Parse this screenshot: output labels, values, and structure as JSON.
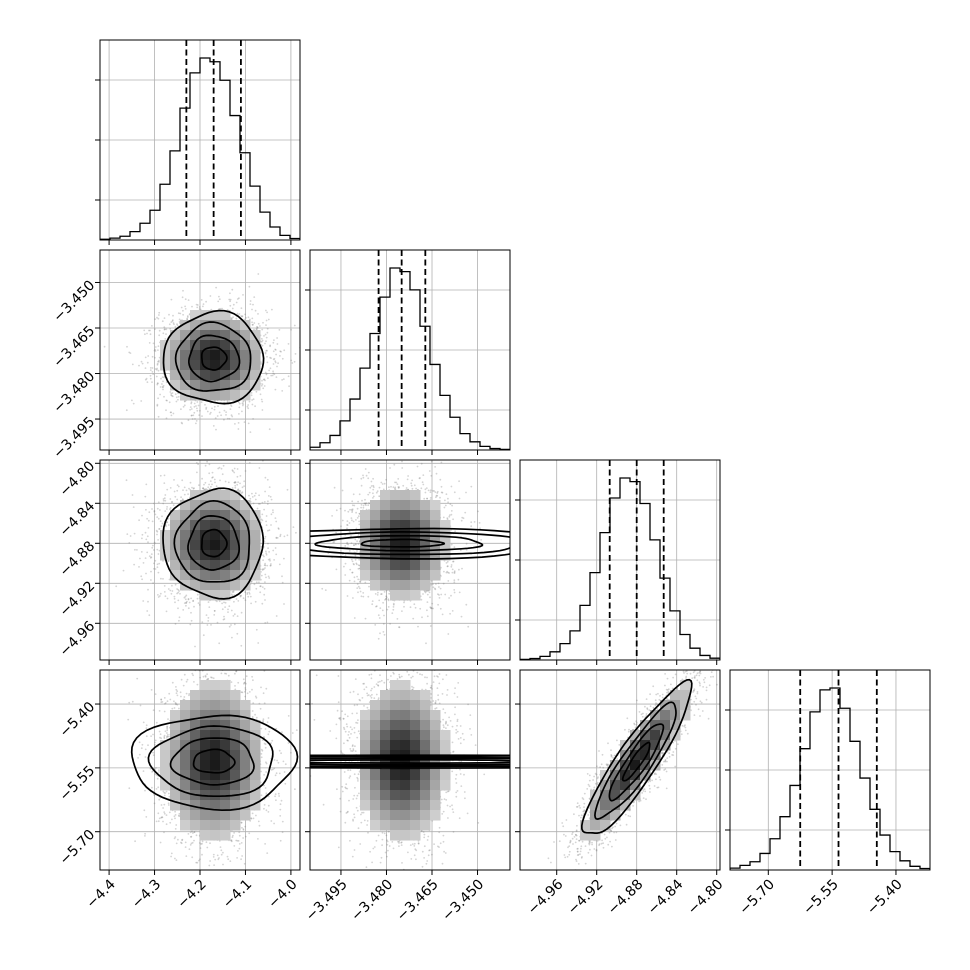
{
  "chart_data": {
    "type": "corner",
    "parameters": [
      {
        "mean": -4.17,
        "std": 0.055,
        "range": [
          -4.42,
          -3.98
        ],
        "quantiles": [
          -4.23,
          -4.17,
          -4.11
        ],
        "ticks": [
          -4.4,
          -4.3,
          -4.2,
          -4.1,
          -4.0
        ],
        "tick_labels": [
          "−4.4",
          "−4.3",
          "−4.2",
          "−4.1",
          "−4.0"
        ]
      },
      {
        "mean": -3.475,
        "std": 0.0075,
        "range": [
          -3.5052,
          -3.4393
        ],
        "quantiles": [
          -3.4826,
          -3.475,
          -3.4672
        ],
        "ticks": [
          -3.495,
          -3.48,
          -3.465,
          -3.45
        ],
        "tick_labels": [
          "−3.495",
          "−3.480",
          "−3.465",
          "−3.450"
        ]
      },
      {
        "mean": -4.88,
        "std": 0.027,
        "range": [
          -4.9967,
          -4.7967
        ],
        "quantiles": [
          -4.907,
          -4.88,
          -4.853
        ],
        "ticks": [
          -4.96,
          -4.92,
          -4.88,
          -4.84,
          -4.8
        ],
        "tick_labels": [
          "−4.96",
          "−4.92",
          "−4.88",
          "−4.84",
          "−4.80"
        ]
      },
      {
        "mean": -5.535,
        "std": 0.09,
        "range": [
          -5.79,
          -5.32
        ],
        "quantiles": [
          -5.625,
          -5.535,
          -5.445
        ],
        "ticks": [
          -5.7,
          -5.55,
          -5.4
        ],
        "tick_labels": [
          "−5.70",
          "−5.55",
          "−5.40"
        ]
      }
    ],
    "correlations": [
      [
        1,
        0,
        0,
        0
      ],
      [
        0,
        1,
        0,
        0
      ],
      [
        0,
        0,
        1,
        0.9
      ],
      [
        0,
        0,
        0.9,
        1
      ]
    ],
    "histograms": {
      "bins": 20,
      "counts": [
        [
          0.4,
          1.0,
          2.0,
          4.5,
          9.0,
          16.0,
          30.0,
          48.0,
          71.0,
          90.0,
          98.0,
          96.0,
          86.0,
          67.0,
          47.0,
          29.0,
          15.0,
          7.0,
          2.5,
          0.8
        ],
        [
          1.5,
          4.0,
          8.0,
          16.0,
          28.0,
          45.0,
          64.0,
          84.0,
          100.0,
          98.0,
          88.0,
          68.0,
          47.0,
          30.0,
          18.0,
          9.0,
          4.5,
          2.0,
          0.8,
          0.3
        ],
        [
          0.3,
          0.8,
          2.0,
          4.5,
          9.0,
          16.0,
          30.0,
          48.0,
          70.0,
          89.0,
          100.0,
          98.0,
          86.0,
          66.0,
          45.0,
          27.0,
          14.0,
          6.5,
          2.5,
          1.0
        ],
        [
          1.0,
          2.5,
          4.5,
          9.0,
          17.0,
          29.0,
          46.0,
          66.0,
          86.0,
          98.0,
          99.0,
          88.0,
          70.0,
          50.0,
          33.0,
          19.0,
          10.0,
          5.0,
          2.0,
          0.8
        ]
      ]
    },
    "contour_levels_sigma": [
      0.5,
      1.0,
      1.5,
      2.0
    ],
    "quantiles_plotted": [
      0.16,
      0.5,
      0.84
    ],
    "grid": true,
    "title": "",
    "xlabel": "",
    "ylabel": ""
  }
}
